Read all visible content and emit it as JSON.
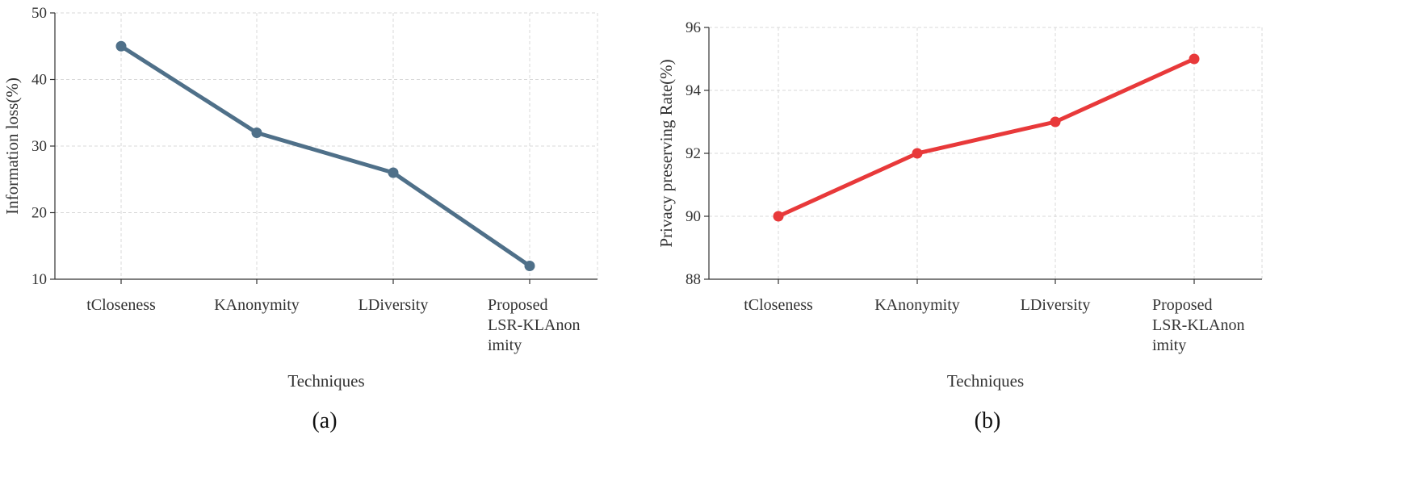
{
  "chart_data": [
    {
      "type": "line",
      "panel_label": "(a)",
      "xlabel": "Techniques",
      "ylabel": "Information loss(%)",
      "categories": [
        [
          "tCloseness"
        ],
        [
          "KAnonymity"
        ],
        [
          "LDiversity"
        ],
        [
          "Proposed",
          "LSR-KLAnon",
          "imity"
        ]
      ],
      "series": [
        {
          "values": [
            45,
            32,
            26,
            12
          ],
          "color": "#4f7089"
        }
      ],
      "ylim": [
        10,
        50
      ],
      "yticks": [
        10,
        20,
        30,
        40,
        50
      ],
      "grid": true
    },
    {
      "type": "line",
      "panel_label": "(b)",
      "xlabel": "Techniques",
      "ylabel": "Privacy preserving Rate(%)",
      "categories": [
        [
          "tCloseness"
        ],
        [
          "KAnonymity"
        ],
        [
          "LDiversity"
        ],
        [
          "Proposed",
          "LSR-KLAnon",
          "imity"
        ]
      ],
      "series": [
        {
          "values": [
            90,
            92,
            93,
            95
          ],
          "color": "#e8393a"
        }
      ],
      "ylim": [
        88,
        96
      ],
      "yticks": [
        88,
        90,
        92,
        94,
        96
      ],
      "grid": true
    }
  ]
}
